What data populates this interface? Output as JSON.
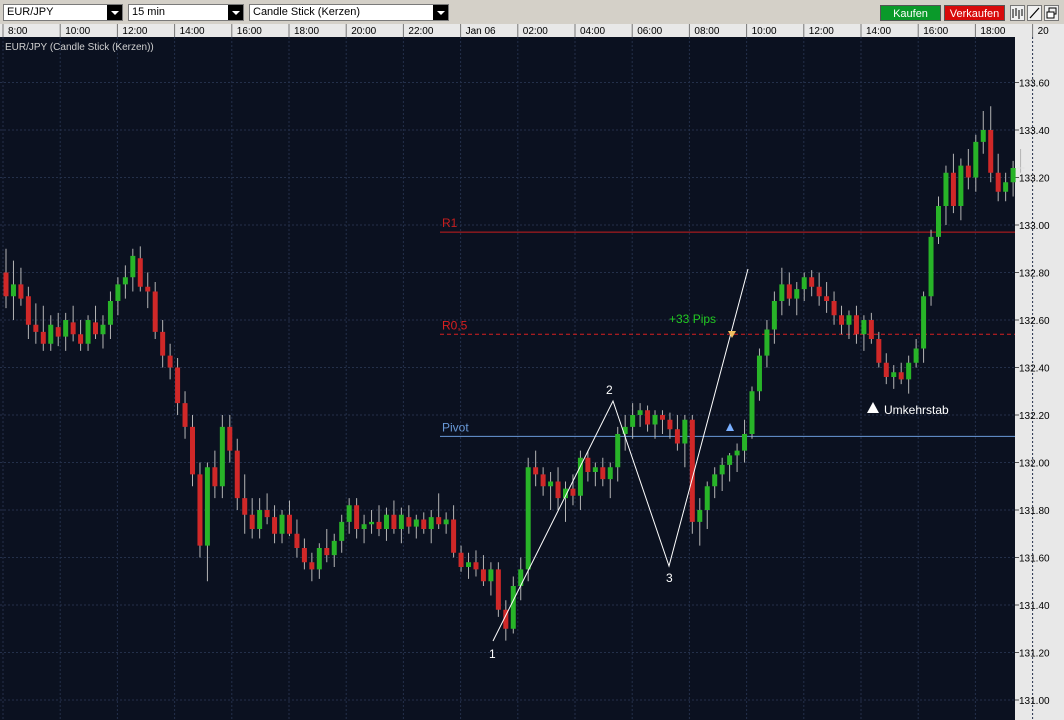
{
  "toolbar": {
    "symbol": "EUR/JPY",
    "interval": "15 min",
    "chart_type": "Candle Stick (Kerzen)",
    "buy_label": "Kaufen",
    "sell_label": "Verkaufen",
    "tools": [
      "bar-chart-icon",
      "draw-line-icon",
      "window-restore-icon"
    ]
  },
  "chart": {
    "legend": "EUR/JPY (Candle Stick (Kerzen))",
    "time_labels": [
      "8:00",
      "10:00",
      "12:00",
      "14:00",
      "16:00",
      "18:00",
      "20:00",
      "22:00",
      "Jan 06",
      "02:00",
      "04:00",
      "06:00",
      "08:00",
      "10:00",
      "12:00",
      "14:00",
      "16:00",
      "18:00",
      "20"
    ],
    "price_labels": [
      "133.60",
      "133.40",
      "133.20",
      "133.00",
      "132.80",
      "132.60",
      "132.40",
      "132.20",
      "132.00",
      "131.80",
      "131.60",
      "131.40",
      "131.20",
      "131.00"
    ],
    "levels": [
      {
        "label": "R1",
        "value": 132.97,
        "color": "#c81e1e",
        "style": "solid"
      },
      {
        "label": "R0,5",
        "value": 132.54,
        "color": "#d82020",
        "style": "dashed"
      },
      {
        "label": "Pivot",
        "value": 132.11,
        "color": "#6a9ad8",
        "style": "solid"
      }
    ],
    "annotations": {
      "pips": "+33 Pips",
      "reversal": "Umkehrstab",
      "wave_labels": [
        "1",
        "2",
        "3"
      ]
    },
    "colors": {
      "background": "#0b1120",
      "grid": "#24304a",
      "up": "#28b428",
      "down": "#d02828",
      "wick": "#b4b4b4",
      "text": "#d0d0d0",
      "wave": "#ffffff",
      "pips_text": "#22c822"
    }
  },
  "chart_data": {
    "type": "candlestick",
    "title": "EUR/JPY (Candle Stick (Kerzen))",
    "interval": "15 min",
    "ylim": [
      130.95,
      133.73
    ],
    "y_ticks": [
      133.6,
      133.4,
      133.2,
      133.0,
      132.8,
      132.6,
      132.4,
      132.2,
      132.0,
      131.8,
      131.6,
      131.4,
      131.2,
      131.0
    ],
    "x_ticks": [
      "8:00",
      "10:00",
      "12:00",
      "14:00",
      "16:00",
      "18:00",
      "20:00",
      "22:00",
      "Jan 06",
      "02:00",
      "04:00",
      "06:00",
      "08:00",
      "10:00",
      "12:00",
      "14:00",
      "16:00",
      "18:00",
      "20"
    ],
    "candles": [
      [
        132.8,
        132.9,
        132.65,
        132.7
      ],
      [
        132.7,
        132.85,
        132.6,
        132.75
      ],
      [
        132.75,
        132.82,
        132.66,
        132.69
      ],
      [
        132.7,
        132.74,
        132.52,
        132.58
      ],
      [
        132.58,
        132.67,
        132.5,
        132.55
      ],
      [
        132.55,
        132.66,
        132.47,
        132.5
      ],
      [
        132.5,
        132.62,
        132.47,
        132.58
      ],
      [
        132.57,
        132.63,
        132.49,
        132.53
      ],
      [
        132.53,
        132.63,
        132.47,
        132.6
      ],
      [
        132.59,
        132.66,
        132.51,
        132.54
      ],
      [
        132.54,
        132.6,
        132.47,
        132.5
      ],
      [
        132.5,
        132.62,
        132.47,
        132.6
      ],
      [
        132.59,
        132.66,
        132.52,
        132.54
      ],
      [
        132.54,
        132.62,
        132.48,
        132.58
      ],
      [
        132.58,
        132.72,
        132.52,
        132.68
      ],
      [
        132.68,
        132.78,
        132.62,
        132.75
      ],
      [
        132.75,
        132.83,
        132.69,
        132.78
      ],
      [
        132.78,
        132.9,
        132.72,
        132.87
      ],
      [
        132.86,
        132.91,
        132.72,
        132.74
      ],
      [
        132.74,
        132.8,
        132.65,
        132.72
      ],
      [
        132.72,
        132.76,
        132.52,
        132.55
      ],
      [
        132.55,
        132.6,
        132.4,
        132.45
      ],
      [
        132.45,
        132.5,
        132.35,
        132.4
      ],
      [
        132.4,
        132.44,
        132.2,
        132.25
      ],
      [
        132.25,
        132.3,
        132.1,
        132.15
      ],
      [
        132.15,
        132.2,
        131.9,
        131.95
      ],
      [
        131.95,
        132.0,
        131.6,
        131.65
      ],
      [
        131.65,
        132.0,
        131.5,
        131.98
      ],
      [
        131.98,
        132.05,
        131.85,
        131.9
      ],
      [
        131.9,
        132.2,
        131.85,
        132.15
      ],
      [
        132.15,
        132.2,
        132.0,
        132.05
      ],
      [
        132.05,
        132.1,
        131.8,
        131.85
      ],
      [
        131.85,
        131.95,
        131.7,
        131.78
      ],
      [
        131.78,
        131.85,
        131.68,
        131.72
      ],
      [
        131.72,
        131.85,
        131.68,
        131.8
      ],
      [
        131.8,
        131.87,
        131.74,
        131.77
      ],
      [
        131.77,
        131.82,
        131.66,
        131.7
      ],
      [
        131.7,
        131.8,
        131.66,
        131.78
      ],
      [
        131.78,
        131.84,
        131.69,
        131.7
      ],
      [
        131.7,
        131.76,
        131.6,
        131.64
      ],
      [
        131.64,
        131.68,
        131.55,
        131.58
      ],
      [
        131.58,
        131.62,
        131.5,
        131.55
      ],
      [
        131.55,
        131.66,
        131.51,
        131.64
      ],
      [
        131.64,
        131.72,
        131.58,
        131.61
      ],
      [
        131.61,
        131.7,
        131.56,
        131.67
      ],
      [
        131.67,
        131.78,
        131.62,
        131.75
      ],
      [
        131.75,
        131.85,
        131.7,
        131.82
      ],
      [
        131.82,
        131.85,
        131.68,
        131.72
      ],
      [
        131.72,
        131.78,
        131.66,
        131.74
      ],
      [
        131.74,
        131.8,
        131.7,
        131.75
      ],
      [
        131.75,
        131.82,
        131.69,
        131.72
      ],
      [
        131.72,
        131.81,
        131.67,
        131.78
      ],
      [
        131.78,
        131.84,
        131.7,
        131.72
      ],
      [
        131.72,
        131.81,
        131.66,
        131.78
      ],
      [
        131.77,
        131.82,
        131.7,
        131.73
      ],
      [
        131.73,
        131.78,
        131.68,
        131.76
      ],
      [
        131.76,
        131.79,
        131.7,
        131.72
      ],
      [
        131.72,
        131.8,
        131.66,
        131.77
      ],
      [
        131.77,
        131.87,
        131.72,
        131.74
      ],
      [
        131.74,
        131.79,
        131.7,
        131.76
      ],
      [
        131.76,
        131.82,
        131.6,
        131.62
      ],
      [
        131.62,
        131.65,
        131.54,
        131.56
      ],
      [
        131.56,
        131.62,
        131.51,
        131.58
      ],
      [
        131.58,
        131.63,
        131.52,
        131.55
      ],
      [
        131.55,
        131.61,
        131.48,
        131.5
      ],
      [
        131.5,
        131.58,
        131.44,
        131.55
      ],
      [
        131.55,
        131.58,
        131.35,
        131.38
      ],
      [
        131.38,
        131.42,
        131.25,
        131.3
      ],
      [
        131.3,
        131.52,
        131.28,
        131.48
      ],
      [
        131.48,
        131.6,
        131.42,
        131.55
      ],
      [
        131.55,
        132.02,
        131.5,
        131.98
      ],
      [
        131.98,
        132.05,
        131.9,
        131.95
      ],
      [
        131.95,
        131.98,
        131.86,
        131.9
      ],
      [
        131.9,
        131.96,
        131.8,
        131.92
      ],
      [
        131.92,
        131.98,
        131.8,
        131.85
      ],
      [
        131.85,
        131.92,
        131.75,
        131.89
      ],
      [
        131.89,
        131.95,
        131.82,
        131.86
      ],
      [
        131.86,
        132.05,
        131.8,
        132.02
      ],
      [
        132.02,
        132.05,
        131.92,
        131.96
      ],
      [
        131.96,
        132.0,
        131.9,
        131.98
      ],
      [
        131.98,
        132.02,
        131.9,
        131.93
      ],
      [
        131.93,
        132.0,
        131.85,
        131.98
      ],
      [
        131.98,
        132.15,
        131.92,
        132.12
      ],
      [
        132.12,
        132.2,
        132.05,
        132.15
      ],
      [
        132.15,
        132.25,
        132.1,
        132.2
      ],
      [
        132.2,
        132.25,
        132.15,
        132.22
      ],
      [
        132.22,
        132.24,
        132.13,
        132.16
      ],
      [
        132.16,
        132.22,
        132.1,
        132.2
      ],
      [
        132.2,
        132.22,
        132.12,
        132.18
      ],
      [
        132.18,
        132.21,
        132.1,
        132.14
      ],
      [
        132.14,
        132.2,
        132.05,
        132.08
      ],
      [
        132.08,
        132.2,
        131.98,
        132.18
      ],
      [
        132.18,
        132.2,
        131.7,
        131.75
      ],
      [
        131.75,
        131.85,
        131.65,
        131.8
      ],
      [
        131.8,
        131.92,
        131.72,
        131.9
      ],
      [
        131.9,
        131.98,
        131.85,
        131.95
      ],
      [
        131.95,
        132.02,
        131.88,
        131.99
      ],
      [
        131.99,
        132.04,
        131.92,
        132.03
      ],
      [
        132.03,
        132.08,
        131.96,
        132.05
      ],
      [
        132.05,
        132.18,
        132.0,
        132.12
      ],
      [
        132.12,
        132.32,
        132.1,
        132.3
      ],
      [
        132.3,
        132.48,
        132.26,
        132.45
      ],
      [
        132.45,
        132.6,
        132.4,
        132.56
      ],
      [
        132.56,
        132.72,
        132.5,
        132.68
      ],
      [
        132.68,
        132.82,
        132.62,
        132.75
      ],
      [
        132.75,
        132.8,
        132.66,
        132.69
      ],
      [
        132.69,
        132.76,
        132.62,
        132.73
      ],
      [
        132.73,
        132.8,
        132.68,
        132.78
      ],
      [
        132.78,
        132.81,
        132.7,
        132.74
      ],
      [
        132.74,
        132.8,
        132.66,
        132.7
      ],
      [
        132.7,
        132.76,
        132.63,
        132.68
      ],
      [
        132.68,
        132.72,
        132.58,
        132.62
      ],
      [
        132.62,
        132.66,
        132.54,
        132.58
      ],
      [
        132.58,
        132.64,
        132.52,
        132.62
      ],
      [
        132.62,
        132.66,
        132.5,
        132.54
      ],
      [
        132.54,
        132.62,
        132.47,
        132.6
      ],
      [
        132.6,
        132.63,
        132.5,
        132.52
      ],
      [
        132.52,
        132.55,
        132.4,
        132.42
      ],
      [
        132.42,
        132.46,
        132.33,
        132.36
      ],
      [
        132.36,
        132.41,
        132.31,
        132.38
      ],
      [
        132.38,
        132.42,
        132.33,
        132.35
      ],
      [
        132.35,
        132.45,
        132.29,
        132.42
      ],
      [
        132.42,
        132.52,
        132.4,
        132.48
      ],
      [
        132.48,
        132.72,
        132.42,
        132.7
      ],
      [
        132.7,
        132.98,
        132.66,
        132.95
      ],
      [
        132.95,
        133.12,
        132.92,
        133.08
      ],
      [
        133.08,
        133.25,
        133.0,
        133.22
      ],
      [
        133.22,
        133.3,
        133.05,
        133.08
      ],
      [
        133.08,
        133.28,
        133.02,
        133.25
      ],
      [
        133.25,
        133.32,
        133.15,
        133.2
      ],
      [
        133.2,
        133.38,
        133.14,
        133.35
      ],
      [
        133.35,
        133.48,
        133.3,
        133.4
      ],
      [
        133.4,
        133.5,
        133.18,
        133.22
      ],
      [
        133.22,
        133.3,
        133.1,
        133.14
      ],
      [
        133.14,
        133.22,
        133.1,
        133.18
      ],
      [
        133.18,
        133.27,
        133.12,
        133.24
      ]
    ]
  }
}
